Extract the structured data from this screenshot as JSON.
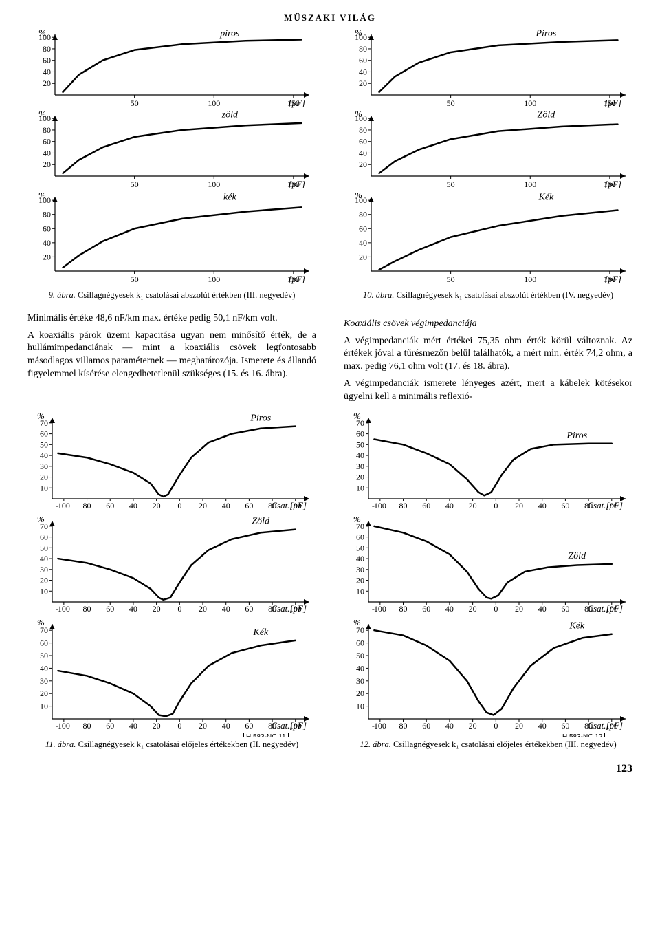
{
  "header": "MŰSZAKI VILÁG",
  "page_number": "123",
  "chart_style": {
    "line_color": "#000000",
    "line_width": 2.5,
    "axis_color": "#000000",
    "axis_width": 1.2,
    "background_color": "#ffffff"
  },
  "fig9": {
    "caption_prefix": "9. ábra.",
    "caption": "Csillagnégyesek k₁ csatolásai abszolút értékben (III. negyedév)",
    "ref": "H 583-NC 9",
    "panels": [
      {
        "series_label": "piros",
        "y_label": "%",
        "y_ticks": [
          20,
          40,
          60,
          80,
          100
        ],
        "x_ticks": [
          50,
          100,
          150
        ],
        "x_unit": "[pF]",
        "curve": [
          [
            5,
            5
          ],
          [
            15,
            35
          ],
          [
            30,
            60
          ],
          [
            50,
            78
          ],
          [
            80,
            88
          ],
          [
            120,
            94
          ],
          [
            155,
            96
          ]
        ]
      },
      {
        "series_label": "zöld",
        "y_label": "%",
        "y_ticks": [
          20,
          40,
          60,
          80,
          100
        ],
        "x_ticks": [
          50,
          100,
          150
        ],
        "x_unit": "[pF]",
        "curve": [
          [
            5,
            5
          ],
          [
            15,
            28
          ],
          [
            30,
            50
          ],
          [
            50,
            68
          ],
          [
            80,
            80
          ],
          [
            120,
            88
          ],
          [
            155,
            92
          ]
        ]
      },
      {
        "series_label": "kék",
        "y_label": "%",
        "y_ticks": [
          20,
          40,
          60,
          80,
          100
        ],
        "x_ticks": [
          50,
          100,
          150
        ],
        "x_unit": "[pF]",
        "curve": [
          [
            5,
            5
          ],
          [
            15,
            22
          ],
          [
            30,
            42
          ],
          [
            50,
            60
          ],
          [
            80,
            74
          ],
          [
            120,
            84
          ],
          [
            155,
            90
          ]
        ]
      }
    ]
  },
  "fig10": {
    "caption_prefix": "10. ábra.",
    "caption": "Csillagnégyesek k₁ csatolásai abszolút értékben (IV. negyedév)",
    "ref": "H 583-NC 10",
    "panels": [
      {
        "series_label": "Piros",
        "y_label": "%",
        "y_ticks": [
          20,
          40,
          60,
          80,
          100
        ],
        "x_ticks": [
          50,
          100,
          150
        ],
        "x_unit": "[pF]",
        "curve": [
          [
            5,
            5
          ],
          [
            15,
            32
          ],
          [
            30,
            56
          ],
          [
            50,
            74
          ],
          [
            80,
            86
          ],
          [
            120,
            92
          ],
          [
            155,
            95
          ]
        ]
      },
      {
        "series_label": "Zöld",
        "y_label": "%",
        "y_ticks": [
          20,
          40,
          60,
          80,
          100
        ],
        "x_ticks": [
          50,
          100,
          150
        ],
        "x_unit": "[pF]",
        "curve": [
          [
            5,
            5
          ],
          [
            15,
            26
          ],
          [
            30,
            46
          ],
          [
            50,
            64
          ],
          [
            80,
            78
          ],
          [
            120,
            86
          ],
          [
            155,
            90
          ]
        ]
      },
      {
        "series_label": "Kék",
        "y_label": "%",
        "y_ticks": [
          20,
          40,
          60,
          80,
          100
        ],
        "x_ticks": [
          50,
          100,
          150
        ],
        "x_unit": "[pF]",
        "curve": [
          [
            5,
            2
          ],
          [
            15,
            14
          ],
          [
            30,
            30
          ],
          [
            50,
            48
          ],
          [
            80,
            64
          ],
          [
            120,
            78
          ],
          [
            155,
            86
          ]
        ]
      }
    ]
  },
  "fig11": {
    "caption_prefix": "11. ábra.",
    "caption": "Csillagnégyesek k₁ csatolásai előjeles értékekben (II. negyedév)",
    "ref": "H 583-NC 11",
    "panels": [
      {
        "series_label": "Piros",
        "y_label": "%",
        "y_ticks": [
          10,
          20,
          30,
          40,
          50,
          60,
          70
        ],
        "x_ticks": [
          -100,
          -80,
          -60,
          -40,
          -20,
          0,
          20,
          40,
          60,
          80,
          100
        ],
        "x_unit": "Csat.[pF]",
        "curve": [
          [
            -105,
            42
          ],
          [
            -80,
            38
          ],
          [
            -60,
            32
          ],
          [
            -40,
            24
          ],
          [
            -25,
            14
          ],
          [
            -18,
            4
          ],
          [
            -14,
            2
          ],
          [
            -10,
            4
          ],
          [
            0,
            22
          ],
          [
            10,
            38
          ],
          [
            25,
            52
          ],
          [
            45,
            60
          ],
          [
            70,
            65
          ],
          [
            100,
            67
          ]
        ]
      },
      {
        "series_label": "Zöld",
        "y_label": "%",
        "y_ticks": [
          10,
          20,
          30,
          40,
          50,
          60,
          70
        ],
        "x_ticks": [
          -100,
          -80,
          -60,
          -40,
          -20,
          0,
          20,
          40,
          60,
          80,
          100
        ],
        "x_unit": "Csat.[pF]",
        "curve": [
          [
            -105,
            40
          ],
          [
            -80,
            36
          ],
          [
            -60,
            30
          ],
          [
            -40,
            22
          ],
          [
            -25,
            12
          ],
          [
            -18,
            4
          ],
          [
            -14,
            2
          ],
          [
            -8,
            4
          ],
          [
            0,
            18
          ],
          [
            10,
            34
          ],
          [
            25,
            48
          ],
          [
            45,
            58
          ],
          [
            70,
            64
          ],
          [
            100,
            67
          ]
        ]
      },
      {
        "series_label": "Kék",
        "y_label": "%",
        "y_ticks": [
          10,
          20,
          30,
          40,
          50,
          60,
          70
        ],
        "x_ticks": [
          -100,
          -80,
          -60,
          -40,
          -20,
          0,
          20,
          40,
          60,
          80,
          100
        ],
        "x_unit": "Csat.[pF]",
        "curve": [
          [
            -105,
            38
          ],
          [
            -80,
            34
          ],
          [
            -60,
            28
          ],
          [
            -40,
            20
          ],
          [
            -25,
            10
          ],
          [
            -18,
            3
          ],
          [
            -12,
            2
          ],
          [
            -6,
            4
          ],
          [
            0,
            14
          ],
          [
            10,
            28
          ],
          [
            25,
            42
          ],
          [
            45,
            52
          ],
          [
            70,
            58
          ],
          [
            100,
            62
          ]
        ]
      }
    ]
  },
  "fig12": {
    "caption_prefix": "12. ábra.",
    "caption": "Csillagnégyesek k₁ csatolásai előjeles értékekben (III. negyedév)",
    "ref": "H 583-NC 12",
    "panels": [
      {
        "series_label": "Piros",
        "y_label": "%",
        "y_ticks": [
          10,
          20,
          30,
          40,
          50,
          60,
          70
        ],
        "x_ticks": [
          -100,
          -80,
          -60,
          -40,
          -20,
          0,
          20,
          40,
          60,
          80,
          100
        ],
        "x_unit": "Csat.[pF]",
        "curve": [
          [
            -105,
            55
          ],
          [
            -80,
            50
          ],
          [
            -60,
            42
          ],
          [
            -40,
            32
          ],
          [
            -25,
            18
          ],
          [
            -15,
            6
          ],
          [
            -10,
            3
          ],
          [
            -4,
            6
          ],
          [
            5,
            22
          ],
          [
            15,
            36
          ],
          [
            30,
            46
          ],
          [
            50,
            50
          ],
          [
            80,
            51
          ],
          [
            100,
            51
          ]
        ]
      },
      {
        "series_label": "Zöld",
        "y_label": "%",
        "y_ticks": [
          10,
          20,
          30,
          40,
          50,
          60,
          70
        ],
        "x_ticks": [
          -100,
          -80,
          -60,
          -40,
          -20,
          0,
          20,
          40,
          60,
          80,
          100
        ],
        "x_unit": "Csat.[pF]",
        "curve": [
          [
            -105,
            70
          ],
          [
            -80,
            64
          ],
          [
            -60,
            56
          ],
          [
            -40,
            44
          ],
          [
            -25,
            28
          ],
          [
            -15,
            12
          ],
          [
            -8,
            4
          ],
          [
            -4,
            3
          ],
          [
            2,
            6
          ],
          [
            10,
            18
          ],
          [
            25,
            28
          ],
          [
            45,
            32
          ],
          [
            70,
            34
          ],
          [
            100,
            35
          ]
        ]
      },
      {
        "series_label": "Kék",
        "y_label": "%",
        "y_ticks": [
          10,
          20,
          30,
          40,
          50,
          60,
          70
        ],
        "x_ticks": [
          -100,
          -80,
          -60,
          -40,
          -20,
          0,
          20,
          40,
          60,
          80,
          100
        ],
        "x_unit": "Csat.[pF]",
        "curve": [
          [
            -105,
            70
          ],
          [
            -80,
            66
          ],
          [
            -60,
            58
          ],
          [
            -40,
            46
          ],
          [
            -25,
            30
          ],
          [
            -15,
            14
          ],
          [
            -8,
            5
          ],
          [
            -2,
            3
          ],
          [
            5,
            8
          ],
          [
            15,
            24
          ],
          [
            30,
            42
          ],
          [
            50,
            56
          ],
          [
            75,
            64
          ],
          [
            100,
            67
          ]
        ]
      }
    ]
  },
  "text_left": {
    "p1": "Minimális értéke 48,6 nF/km max. értéke pedig 50,1 nF/km volt.",
    "p2": "A koaxiális párok üzemi kapacitása ugyan nem minősítő érték, de a hullámimpedanciának — mint a koaxiális csövek legfontosabb másodlagos villamos paraméternek — meghatározója. Ismerete és állandó figyelemmel kísérése elengedhetetlenül szükséges (15. és 16. ábra)."
  },
  "text_right": {
    "heading": "Koaxiális csövek végimpedanciája",
    "p1": "A végimpedanciák mért értékei 75,35 ohm érték körül változnak. Az értékek jóval a tűrésmezőn belül találhatók, a mért min. érték 74,2 ohm, a max. pedig 76,1 ohm volt (17. és 18. ábra).",
    "p2": "A végimpedanciák ismerete lényeges azért, mert a kábelek kötésekor ügyelni kell a minimális reflexió-"
  }
}
